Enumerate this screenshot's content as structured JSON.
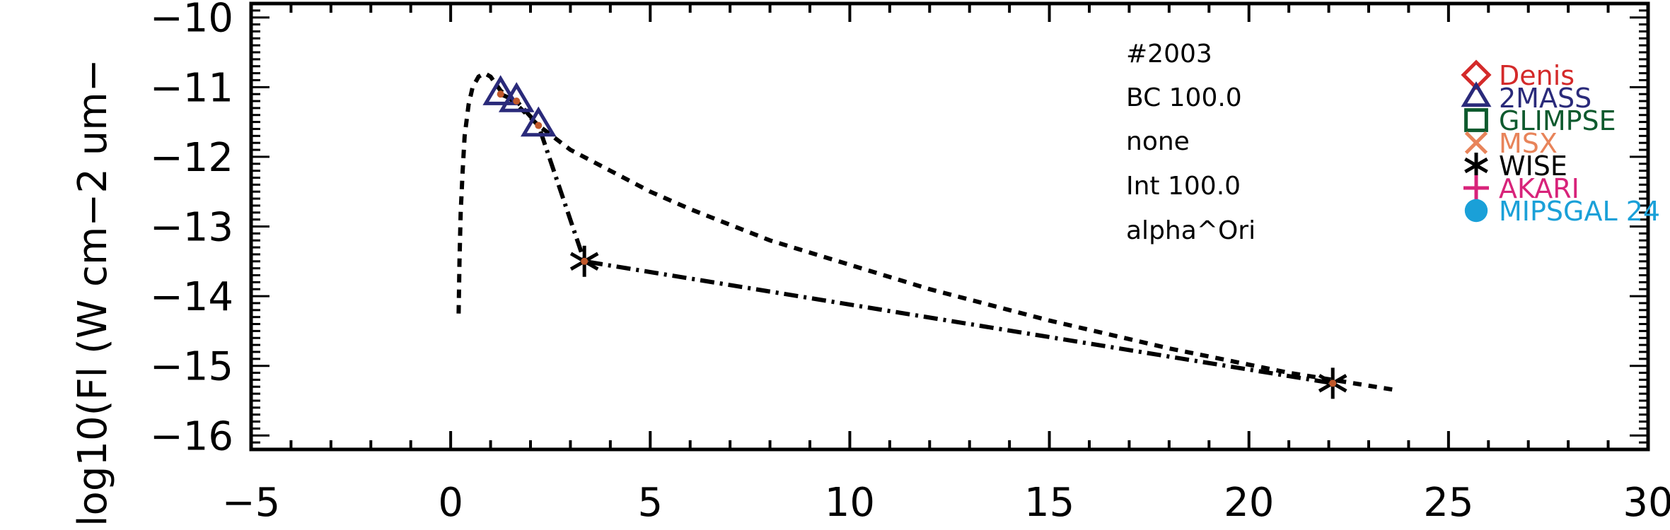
{
  "chart_data": {
    "type": "scatter",
    "ylabel": "log10(Fl (W cm−2 um−",
    "xlabel": "",
    "xlim": [
      -5,
      30
    ],
    "ylim": [
      -16.2,
      -9.8
    ],
    "x_ticks": [
      -5,
      0,
      5,
      10,
      15,
      20,
      25,
      30
    ],
    "x_tick_labels": [
      "−5",
      "0",
      "5",
      "10",
      "15",
      "20",
      "25",
      "30"
    ],
    "y_ticks": [
      -10,
      -11,
      -12,
      -13,
      -14,
      -15,
      -16
    ],
    "y_tick_labels": [
      "−10",
      "−11",
      "−12",
      "−13",
      "−14",
      "−15",
      "−16"
    ],
    "annotations": [
      "#2003",
      "BC 100.0",
      "none",
      "Int 100.0",
      "alpha^Ori"
    ],
    "legend": {
      "position": "top-right",
      "entries": [
        {
          "name": "Denis",
          "marker": "diamond",
          "color": "#d42a2a"
        },
        {
          "name": "2MASS",
          "marker": "triangle",
          "color": "#2a2a7a"
        },
        {
          "name": "GLIMPSE",
          "marker": "square",
          "color": "#0e5a2e"
        },
        {
          "name": "MSX",
          "marker": "x",
          "color": "#e8845a"
        },
        {
          "name": "WISE",
          "marker": "asterisk",
          "color": "#000000"
        },
        {
          "name": "AKARI",
          "marker": "plus",
          "color": "#d8237a"
        },
        {
          "name": "MIPSGAL 24",
          "marker": "circle",
          "color": "#1aa0d8"
        }
      ]
    },
    "series": [
      {
        "style": "dashed",
        "x": [
          0.2,
          0.22,
          0.25,
          0.3,
          0.35,
          0.45,
          0.55,
          0.7,
          0.85,
          1.0,
          1.25,
          1.65,
          2.2,
          3.0,
          4.0,
          5.0,
          6.0,
          8.0,
          10.0,
          12.0,
          15.0,
          18.0,
          21.0,
          23.7
        ],
        "y": [
          -14.25,
          -13.5,
          -12.8,
          -12.2,
          -11.7,
          -11.25,
          -11.0,
          -10.85,
          -10.8,
          -10.85,
          -11.05,
          -11.25,
          -11.55,
          -11.9,
          -12.2,
          -12.5,
          -12.75,
          -13.2,
          -13.55,
          -13.9,
          -14.35,
          -14.75,
          -15.1,
          -15.35
        ]
      },
      {
        "style": "dashdot",
        "x": [
          1.25,
          1.65,
          2.2,
          3.35,
          22.1
        ],
        "y": [
          -11.1,
          -11.2,
          -11.55,
          -13.5,
          -15.25
        ]
      }
    ],
    "points": [
      {
        "set": "2MASS",
        "marker": "triangle",
        "color": "#2a2a7a",
        "x": 1.25,
        "y": -11.1
      },
      {
        "set": "2MASS",
        "marker": "triangle",
        "color": "#2a2a7a",
        "x": 1.65,
        "y": -11.2
      },
      {
        "set": "2MASS",
        "marker": "triangle",
        "color": "#2a2a7a",
        "x": 2.2,
        "y": -11.55
      },
      {
        "set": "WISE",
        "marker": "asterisk",
        "color": "#000000",
        "x": 3.35,
        "y": -13.5
      },
      {
        "set": "WISE",
        "marker": "asterisk",
        "color": "#000000",
        "x": 22.1,
        "y": -15.25
      }
    ],
    "point_center_color": "#c0582a"
  }
}
